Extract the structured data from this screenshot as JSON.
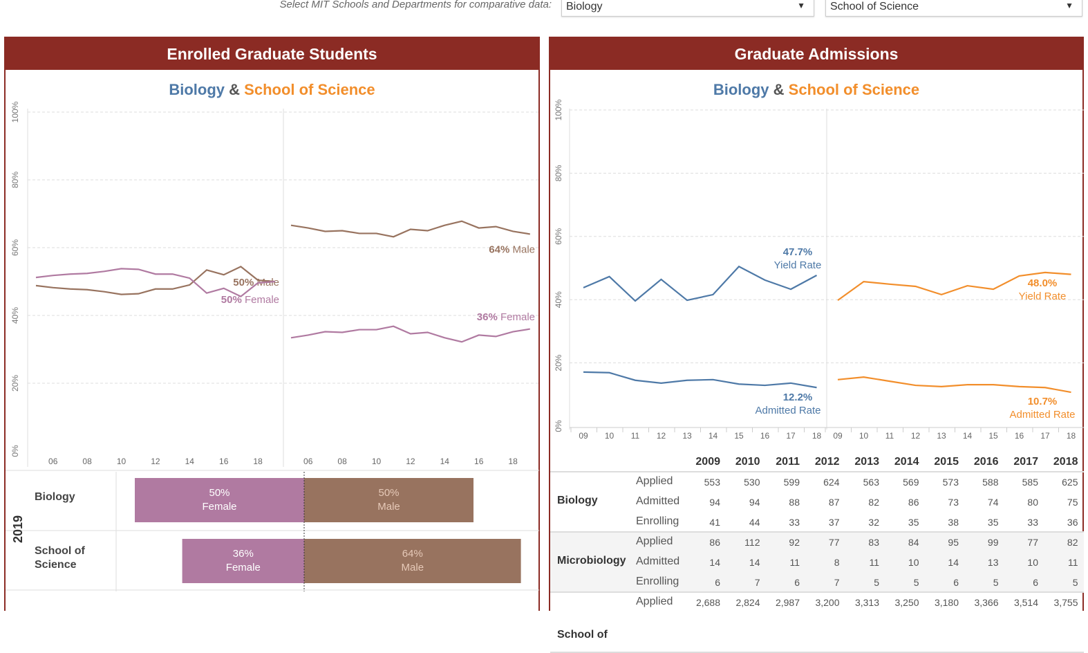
{
  "filters": {
    "label": "Select MIT Schools and Departments for comparative data:",
    "department": "Biology",
    "school": "School of Science",
    "arrow_icon": "triangle-down"
  },
  "colors": {
    "header": "#8b2b24",
    "biology": "#4e79a7",
    "school": "#f28e2b",
    "male": "#98735f",
    "female": "#b07aa1"
  },
  "left": {
    "title": "Enrolled Graduate Students",
    "subtitle": {
      "a": "Biology",
      "amp": "&",
      "b": "School of Science"
    },
    "bars": {
      "year": "2019",
      "rows": [
        {
          "label": "Biology",
          "female_pct": 50,
          "male_pct": 50,
          "female_text": "50%",
          "female_word": "Female",
          "male_text": "50%",
          "male_word": "Male"
        },
        {
          "label": "School of Science",
          "female_pct": 36,
          "male_pct": 64,
          "female_text": "36%",
          "female_word": "Female",
          "male_text": "64%",
          "male_word": "Male"
        }
      ]
    }
  },
  "right": {
    "title": "Graduate Admissions",
    "subtitle": {
      "a": "Biology",
      "amp": "&",
      "b": "School of Science"
    },
    "table": {
      "years": [
        "2009",
        "2010",
        "2011",
        "2012",
        "2013",
        "2014",
        "2015",
        "2016",
        "2017",
        "2018"
      ],
      "groups": [
        {
          "name": "Biology",
          "rows": [
            {
              "metric": "Applied",
              "values": [
                "553",
                "530",
                "599",
                "624",
                "563",
                "569",
                "573",
                "588",
                "585",
                "625"
              ]
            },
            {
              "metric": "Admitted",
              "values": [
                "94",
                "94",
                "88",
                "87",
                "82",
                "86",
                "73",
                "74",
                "80",
                "75"
              ]
            },
            {
              "metric": "Enrolling",
              "values": [
                "41",
                "44",
                "33",
                "37",
                "32",
                "35",
                "38",
                "35",
                "33",
                "36"
              ]
            }
          ]
        },
        {
          "name": "Microbiology",
          "rows": [
            {
              "metric": "Applied",
              "values": [
                "86",
                "112",
                "92",
                "77",
                "83",
                "84",
                "95",
                "99",
                "77",
                "82"
              ]
            },
            {
              "metric": "Admitted",
              "values": [
                "14",
                "14",
                "11",
                "8",
                "11",
                "10",
                "14",
                "13",
                "10",
                "11"
              ]
            },
            {
              "metric": "Enrolling",
              "values": [
                "6",
                "7",
                "6",
                "7",
                "5",
                "5",
                "6",
                "5",
                "6",
                "5"
              ]
            }
          ]
        },
        {
          "name": "School of",
          "rows": [
            {
              "metric": "Applied",
              "values": [
                "2,688",
                "2,824",
                "2,987",
                "3,200",
                "3,313",
                "3,250",
                "3,180",
                "3,366",
                "3,514",
                "3,755"
              ]
            }
          ]
        }
      ]
    }
  },
  "chart_data": [
    {
      "type": "line",
      "title": "Enrolled Graduate Students",
      "ylim": [
        0,
        100
      ],
      "yticks": [
        "0%",
        "20%",
        "40%",
        "60%",
        "80%",
        "100%"
      ],
      "grid": true,
      "panels": [
        {
          "name": "Biology",
          "x": [
            2005,
            2006,
            2007,
            2008,
            2009,
            2010,
            2011,
            2012,
            2013,
            2014,
            2015,
            2016,
            2017,
            2018,
            2019
          ],
          "xticks": [
            "06",
            "08",
            "10",
            "12",
            "14",
            "16",
            "18"
          ],
          "series": [
            {
              "name": "Male",
              "values": [
                48.8,
                48.2,
                47.8,
                47.6,
                47,
                46.2,
                46.4,
                47.8,
                47.8,
                49,
                53.4,
                52,
                54.4,
                50.4,
                50
              ],
              "label_value": "50%",
              "label_text": "Male"
            },
            {
              "name": "Female",
              "values": [
                51.2,
                51.8,
                52.2,
                52.4,
                53,
                53.8,
                53.6,
                52.2,
                52.2,
                51,
                46.6,
                48,
                45.6,
                49.6,
                50
              ],
              "label_value": "50%",
              "label_text": "Female"
            }
          ]
        },
        {
          "name": "School of Science",
          "x": [
            2005,
            2006,
            2007,
            2008,
            2009,
            2010,
            2011,
            2012,
            2013,
            2014,
            2015,
            2016,
            2017,
            2018,
            2019
          ],
          "xticks": [
            "06",
            "08",
            "10",
            "12",
            "14",
            "16",
            "18"
          ],
          "series": [
            {
              "name": "Male",
              "values": [
                66.6,
                65.8,
                64.8,
                65,
                64.2,
                64.2,
                63.2,
                65.4,
                65,
                66.6,
                67.8,
                65.8,
                66.2,
                64.8,
                64
              ],
              "label_value": "64%",
              "label_text": "Male"
            },
            {
              "name": "Female",
              "values": [
                33.4,
                34.2,
                35.2,
                35,
                35.8,
                35.8,
                36.8,
                34.6,
                35,
                33.4,
                32.2,
                34.2,
                33.8,
                35.2,
                36
              ],
              "label_value": "36%",
              "label_text": "Female"
            }
          ]
        }
      ]
    },
    {
      "type": "line",
      "title": "Graduate Admissions",
      "ylim": [
        0,
        100
      ],
      "yticks": [
        "0%",
        "20%",
        "40%",
        "60%",
        "80%",
        "100%"
      ],
      "grid": true,
      "panels": [
        {
          "name": "Biology",
          "x": [
            2009,
            2010,
            2011,
            2012,
            2013,
            2014,
            2015,
            2016,
            2017,
            2018
          ],
          "xticks": [
            "09",
            "10",
            "11",
            "12",
            "13",
            "14",
            "15",
            "16",
            "17",
            "18"
          ],
          "series": [
            {
              "name": "Yield Rate",
              "values": [
                43.8,
                47.3,
                39.6,
                46.4,
                39.8,
                41.6,
                50.5,
                46.2,
                43.3,
                47.7
              ],
              "label_value": "47.7%",
              "label_text": "Yield Rate"
            },
            {
              "name": "Admitted Rate",
              "values": [
                17.1,
                16.9,
                14.5,
                13.6,
                14.5,
                14.7,
                13.3,
                12.9,
                13.6,
                12.2
              ],
              "label_value": "12.2%",
              "label_text": "Admitted Rate"
            }
          ]
        },
        {
          "name": "School of Science",
          "x": [
            2009,
            2010,
            2011,
            2012,
            2013,
            2014,
            2015,
            2016,
            2017,
            2018
          ],
          "xticks": [
            "09",
            "10",
            "11",
            "12",
            "13",
            "14",
            "15",
            "16",
            "17",
            "18"
          ],
          "series": [
            {
              "name": "Yield Rate",
              "values": [
                39.8,
                45.7,
                44.9,
                44.2,
                41.6,
                44.4,
                43.3,
                47.5,
                48.6,
                48.0
              ],
              "label_value": "48.0%",
              "label_text": "Yield Rate"
            },
            {
              "name": "Admitted Rate",
              "values": [
                14.7,
                15.5,
                14.2,
                12.9,
                12.5,
                13.1,
                13.1,
                12.5,
                12.2,
                10.7
              ],
              "label_value": "10.7%",
              "label_text": "Admitted Rate"
            }
          ]
        }
      ]
    }
  ]
}
